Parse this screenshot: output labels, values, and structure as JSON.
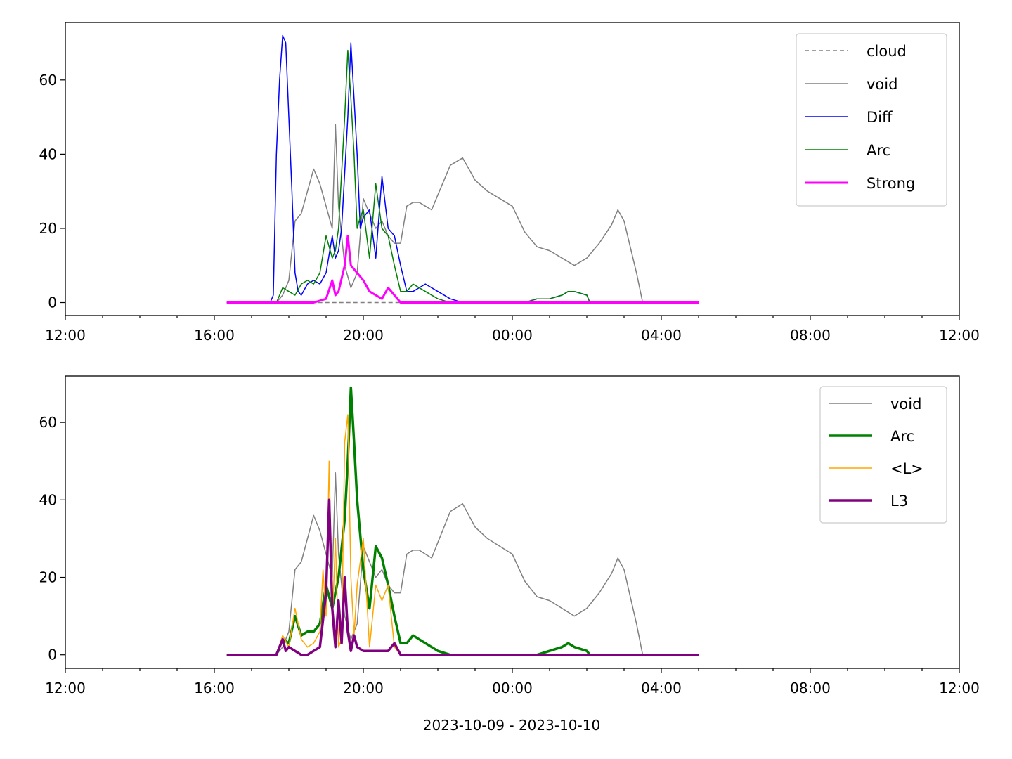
{
  "figure": {
    "xlabel": "2023-10-09 - 2023-10-10"
  },
  "chart_data": [
    {
      "type": "line",
      "x_unit": "time (hh:mm)",
      "xlim": [
        "12:00",
        "12:00 (+1 day)"
      ],
      "ylim": [
        -3.5,
        75.5
      ],
      "xticks": [
        "12:00",
        "16:00",
        "20:00",
        "00:00",
        "04:00",
        "08:00",
        "12:00"
      ],
      "yticks": [
        0,
        20,
        40,
        60
      ],
      "legend_position": "upper right",
      "grid": false,
      "series": [
        {
          "name": "cloud",
          "color": "#808080",
          "style": "dashed",
          "width": 1.5,
          "x": [
            "16:20",
            "05:00"
          ],
          "y": [
            0,
            0
          ]
        },
        {
          "name": "void",
          "color": "#808080",
          "style": "solid",
          "width": 1.5,
          "x": [
            "16:20",
            "17:40",
            "17:50",
            "18:00",
            "18:10",
            "18:20",
            "18:30",
            "18:40",
            "18:50",
            "19:00",
            "19:10",
            "19:15",
            "19:20",
            "19:30",
            "19:40",
            "19:50",
            "20:00",
            "20:10",
            "20:20",
            "20:30",
            "20:40",
            "20:50",
            "21:00",
            "21:10",
            "21:20",
            "21:30",
            "21:40",
            "21:50",
            "22:00",
            "22:20",
            "22:40",
            "22:50",
            "23:00",
            "23:20",
            "23:40",
            "00:00",
            "00:20",
            "00:40",
            "01:00",
            "01:20",
            "01:40",
            "02:00",
            "02:20",
            "02:40",
            "02:50",
            "03:00",
            "03:10",
            "03:20",
            "03:30",
            "05:00"
          ],
          "y": [
            0,
            0,
            2,
            6,
            22,
            24,
            30,
            36,
            32,
            26,
            20,
            48,
            26,
            10,
            4,
            8,
            28,
            24,
            20,
            22,
            18,
            16,
            16,
            26,
            27,
            27,
            26,
            25,
            29,
            37,
            39,
            36,
            33,
            30,
            28,
            26,
            19,
            15,
            14,
            12,
            10,
            12,
            16,
            21,
            25,
            22,
            15,
            8,
            0,
            0
          ]
        },
        {
          "name": "Diff",
          "color": "#0000ff",
          "style": "solid",
          "width": 1.5,
          "x": [
            "16:20",
            "17:30",
            "17:35",
            "17:40",
            "17:45",
            "17:50",
            "17:55",
            "18:00",
            "18:05",
            "18:10",
            "18:15",
            "18:20",
            "18:30",
            "18:40",
            "18:50",
            "19:00",
            "19:10",
            "19:15",
            "19:20",
            "19:25",
            "19:30",
            "19:35",
            "19:40",
            "19:45",
            "19:50",
            "19:55",
            "20:00",
            "20:10",
            "20:20",
            "20:30",
            "20:40",
            "20:50",
            "21:00",
            "21:10",
            "21:20",
            "21:40",
            "22:00",
            "22:20",
            "22:40",
            "23:00",
            "23:20",
            "23:40",
            "00:00",
            "00:20",
            "00:40",
            "01:00",
            "01:20",
            "01:30",
            "01:40",
            "02:00",
            "02:05",
            "05:00"
          ],
          "y": [
            0,
            0,
            2,
            40,
            60,
            72,
            70,
            50,
            30,
            8,
            3,
            2,
            5,
            6,
            5,
            8,
            18,
            12,
            14,
            20,
            35,
            50,
            70,
            55,
            40,
            20,
            23,
            25,
            12,
            34,
            20,
            18,
            10,
            3,
            3,
            5,
            3,
            1,
            0,
            0,
            0,
            0,
            0,
            0,
            1,
            1,
            2,
            3,
            3,
            2,
            0,
            0
          ]
        },
        {
          "name": "Arc",
          "color": "#008000",
          "style": "solid",
          "width": 1.5,
          "x": [
            "16:20",
            "17:40",
            "17:45",
            "17:50",
            "18:00",
            "18:10",
            "18:20",
            "18:30",
            "18:40",
            "18:50",
            "19:00",
            "19:10",
            "19:15",
            "19:20",
            "19:25",
            "19:30",
            "19:35",
            "19:40",
            "19:45",
            "19:50",
            "19:55",
            "20:00",
            "20:10",
            "20:20",
            "20:30",
            "20:40",
            "20:50",
            "21:00",
            "21:10",
            "21:20",
            "21:40",
            "22:00",
            "22:20",
            "22:40",
            "23:00",
            "23:20",
            "23:40",
            "00:00",
            "00:20",
            "00:40",
            "01:00",
            "01:20",
            "01:30",
            "01:40",
            "02:00",
            "02:05",
            "05:00"
          ],
          "y": [
            0,
            0,
            2,
            4,
            3,
            2,
            5,
            6,
            5,
            8,
            18,
            12,
            14,
            20,
            35,
            50,
            68,
            55,
            40,
            20,
            23,
            25,
            12,
            32,
            20,
            18,
            10,
            3,
            3,
            5,
            3,
            1,
            0,
            0,
            0,
            0,
            0,
            0,
            0,
            1,
            1,
            2,
            3,
            3,
            2,
            0,
            0
          ]
        },
        {
          "name": "Strong",
          "color": "#ff00ff",
          "style": "solid",
          "width": 3.0,
          "x": [
            "16:20",
            "18:40",
            "19:00",
            "19:10",
            "19:15",
            "19:20",
            "19:30",
            "19:35",
            "19:40",
            "19:50",
            "20:00",
            "20:10",
            "20:20",
            "20:30",
            "20:40",
            "20:50",
            "21:00",
            "05:00"
          ],
          "y": [
            0,
            0,
            1,
            6,
            2,
            3,
            10,
            18,
            10,
            8,
            6,
            3,
            2,
            1,
            4,
            2,
            0,
            0
          ]
        }
      ]
    },
    {
      "type": "line",
      "x_unit": "time (hh:mm)",
      "xlim": [
        "12:00",
        "12:00 (+1 day)"
      ],
      "ylim": [
        -3.5,
        72
      ],
      "xticks": [
        "12:00",
        "16:00",
        "20:00",
        "00:00",
        "04:00",
        "08:00",
        "12:00"
      ],
      "yticks": [
        0,
        20,
        40,
        60
      ],
      "legend_position": "upper right",
      "grid": false,
      "series": [
        {
          "name": "void",
          "color": "#808080",
          "style": "solid",
          "width": 1.5,
          "x": [
            "16:20",
            "17:40",
            "17:50",
            "18:00",
            "18:10",
            "18:20",
            "18:30",
            "18:40",
            "18:50",
            "19:00",
            "19:10",
            "19:15",
            "19:20",
            "19:30",
            "19:40",
            "19:50",
            "20:00",
            "20:10",
            "20:20",
            "20:30",
            "20:40",
            "20:50",
            "21:00",
            "21:10",
            "21:20",
            "21:30",
            "21:40",
            "21:50",
            "22:00",
            "22:20",
            "22:40",
            "22:50",
            "23:00",
            "23:20",
            "23:40",
            "00:00",
            "00:20",
            "00:40",
            "01:00",
            "01:20",
            "01:40",
            "02:00",
            "02:20",
            "02:40",
            "02:50",
            "03:00",
            "03:10",
            "03:20",
            "03:30",
            "05:00"
          ],
          "y": [
            0,
            0,
            2,
            6,
            22,
            24,
            30,
            36,
            32,
            26,
            20,
            47,
            26,
            10,
            4,
            8,
            28,
            24,
            20,
            22,
            18,
            16,
            16,
            26,
            27,
            27,
            26,
            25,
            29,
            37,
            39,
            36,
            33,
            30,
            28,
            26,
            19,
            15,
            14,
            12,
            10,
            12,
            16,
            21,
            25,
            22,
            15,
            8,
            0,
            0
          ]
        },
        {
          "name": "Arc",
          "color": "#008000",
          "style": "solid",
          "width": 3.5,
          "x": [
            "16:20",
            "17:40",
            "17:50",
            "18:00",
            "18:10",
            "18:20",
            "18:30",
            "18:40",
            "18:50",
            "19:00",
            "19:10",
            "19:20",
            "19:30",
            "19:35",
            "19:40",
            "19:45",
            "19:50",
            "20:00",
            "20:10",
            "20:20",
            "20:30",
            "20:40",
            "20:50",
            "21:00",
            "21:10",
            "21:20",
            "21:40",
            "22:00",
            "22:20",
            "22:40",
            "23:00",
            "00:00",
            "00:40",
            "01:00",
            "01:20",
            "01:30",
            "01:40",
            "02:00",
            "02:05",
            "05:00"
          ],
          "y": [
            0,
            0,
            4,
            3,
            10,
            5,
            6,
            6,
            8,
            18,
            12,
            20,
            35,
            50,
            69,
            55,
            40,
            22,
            12,
            28,
            25,
            18,
            10,
            3,
            3,
            5,
            3,
            1,
            0,
            0,
            0,
            0,
            0,
            1,
            2,
            3,
            2,
            1,
            0,
            0
          ]
        },
        {
          "name": "<L>",
          "color": "#ffa500",
          "style": "solid",
          "width": 1.5,
          "x": [
            "16:20",
            "17:40",
            "17:50",
            "18:00",
            "18:10",
            "18:20",
            "18:30",
            "18:40",
            "18:50",
            "18:55",
            "19:00",
            "19:05",
            "19:10",
            "19:15",
            "19:20",
            "19:25",
            "19:30",
            "19:35",
            "19:40",
            "19:45",
            "19:50",
            "20:00",
            "20:10",
            "20:20",
            "20:30",
            "20:40",
            "20:50",
            "21:00",
            "21:10",
            "05:00"
          ],
          "y": [
            0,
            0,
            5,
            2,
            12,
            4,
            2,
            3,
            6,
            22,
            10,
            50,
            8,
            30,
            2,
            4,
            55,
            62,
            20,
            5,
            18,
            30,
            2,
            18,
            14,
            18,
            2,
            0,
            0,
            0
          ]
        },
        {
          "name": "L3",
          "color": "#800080",
          "style": "solid",
          "width": 3.5,
          "x": [
            "16:20",
            "17:40",
            "17:50",
            "17:55",
            "18:00",
            "18:10",
            "18:20",
            "18:30",
            "18:40",
            "18:50",
            "19:00",
            "19:05",
            "19:10",
            "19:15",
            "19:20",
            "19:25",
            "19:30",
            "19:35",
            "19:40",
            "19:45",
            "19:50",
            "20:00",
            "20:10",
            "20:20",
            "20:30",
            "20:40",
            "20:50",
            "21:00",
            "05:00"
          ],
          "y": [
            0,
            0,
            4,
            1,
            2,
            1,
            0,
            0,
            1,
            2,
            16,
            40,
            12,
            2,
            14,
            3,
            20,
            6,
            1,
            5,
            2,
            1,
            1,
            1,
            1,
            1,
            3,
            0,
            0
          ]
        }
      ]
    }
  ]
}
